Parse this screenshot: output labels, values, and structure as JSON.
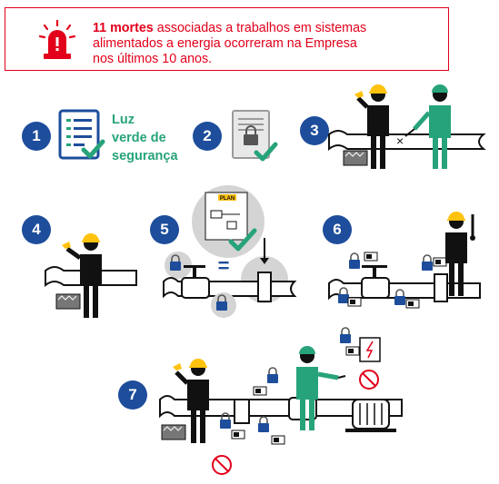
{
  "alert": {
    "bold": "11 mortes",
    "line1_rest": " associadas a trabalhos em sistemas",
    "line2": "alimentados a energia ocorreram na Empresa",
    "line3": "nos últimos 10 anos."
  },
  "steps": [
    "1",
    "2",
    "3",
    "4",
    "5",
    "6",
    "7"
  ],
  "green_label": {
    "line1": "Luz",
    "line2": "verde de",
    "line3": "segurança"
  },
  "plan_label": "PLAN",
  "equals": "=",
  "colors": {
    "red": "#e2001a",
    "blue": "#1d4d9b",
    "green": "#27a37b",
    "yellow": "#ffc20e",
    "black": "#111111",
    "grey": "#bfbfbf"
  }
}
